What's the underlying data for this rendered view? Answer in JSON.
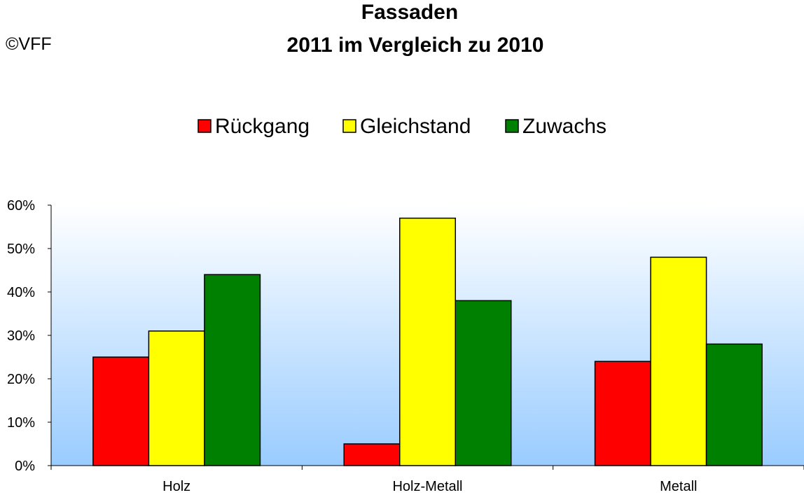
{
  "copyright": "©VFF",
  "colors": {
    "Rückgang": "#ff0000",
    "Gleichstand": "#ffff00",
    "Zuwachs": "#008000",
    "plot_background_top": "#ffffff",
    "plot_background_bottom": "#99ccff"
  },
  "chart_data": {
    "type": "bar",
    "title": [
      "Fassaden",
      "2011 im Vergleich zu 2010"
    ],
    "xlabel": "",
    "ylabel": "",
    "categories": [
      "Holz",
      "Holz-Metall",
      "Metall"
    ],
    "series": [
      {
        "name": "Rückgang",
        "values": [
          25,
          5,
          24
        ]
      },
      {
        "name": "Gleichstand",
        "values": [
          31,
          57,
          48
        ]
      },
      {
        "name": "Zuwachs",
        "values": [
          44,
          38,
          28
        ]
      }
    ],
    "ylim": [
      0,
      60
    ],
    "yticks": [
      "0%",
      "10%",
      "20%",
      "30%",
      "40%",
      "50%",
      "60%"
    ],
    "legend_position": "top-center",
    "grid": false
  }
}
